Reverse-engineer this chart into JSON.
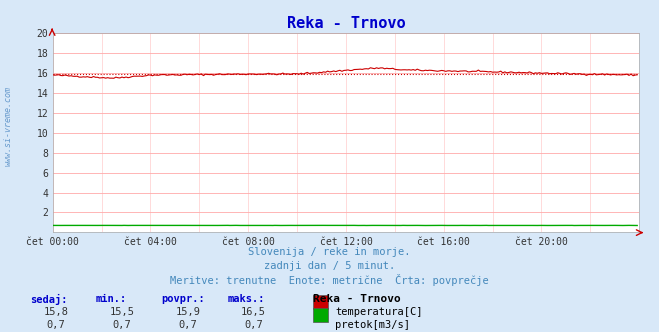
{
  "title": "Reka - Trnovo",
  "bg_color": "#d8e8f8",
  "plot_bg_color": "#ffffff",
  "title_color": "#0000cc",
  "axis_color": "#aaaaaa",
  "grid_h_color": "#ffaaaa",
  "grid_v_color": "#ffcccc",
  "watermark_text": "www.si-vreme.com",
  "watermark_color": "#6699cc",
  "subtitle_lines": [
    "Slovenija / reke in morje.",
    "zadnji dan / 5 minut.",
    "Meritve: trenutne  Enote: metrične  Črta: povprečje"
  ],
  "subtitle_color": "#4488bb",
  "xtick_labels": [
    "čet 00:00",
    "čet 04:00",
    "čet 08:00",
    "čet 12:00",
    "čet 16:00",
    "čet 20:00"
  ],
  "xtick_positions": [
    0,
    48,
    96,
    144,
    192,
    240
  ],
  "ylim": [
    0,
    20
  ],
  "xlim": [
    0,
    288
  ],
  "arrow_color": "#cc0000",
  "temp_color": "#cc0000",
  "flow_color": "#00aa00",
  "temp_avg_value": 15.9,
  "flow_avg_value": 0.7,
  "table_headers": [
    "sedaj:",
    "min.:",
    "povpr.:",
    "maks.:"
  ],
  "table_header_color": "#0000cc",
  "table_values_temp": [
    "15,8",
    "15,5",
    "15,9",
    "16,5"
  ],
  "table_values_flow": [
    "0,7",
    "0,7",
    "0,7",
    "0,7"
  ],
  "table_color": "#333333",
  "legend_title": "Reka - Trnovo",
  "legend_temp_label": "temperatura[C]",
  "legend_flow_label": "pretok[m3/s]",
  "legend_color": "#000000",
  "n_points": 288
}
